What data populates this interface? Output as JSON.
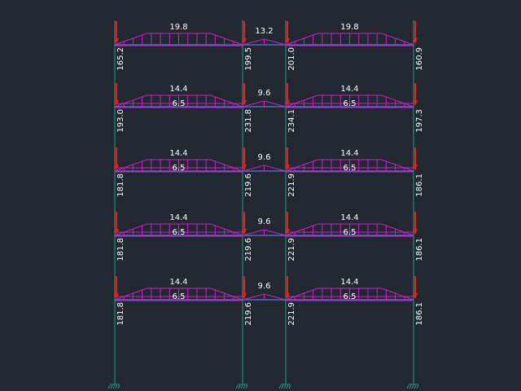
{
  "colors": {
    "background": "#212830",
    "column": "#1f9e8a",
    "beam": "#4a70b8",
    "load": "#d21bd2",
    "point_load": "#ff1414",
    "text": "#ffffff"
  },
  "floors": [
    {
      "left_bay": {
        "peak": "19.8",
        "base": ""
      },
      "mid_bay": {
        "peak": "13.2"
      },
      "right_bay": {
        "peak": "19.8",
        "base": ""
      },
      "point_loads": [
        "165.2",
        "199.5",
        "201.0",
        "160.9"
      ]
    },
    {
      "left_bay": {
        "peak": "14.4",
        "base": "6.5"
      },
      "mid_bay": {
        "peak": "9.6"
      },
      "right_bay": {
        "peak": "14.4",
        "base": "6.5"
      },
      "point_loads": [
        "193.0",
        "231.8",
        "234.1",
        "197.3"
      ]
    },
    {
      "left_bay": {
        "peak": "14.4",
        "base": "6.5"
      },
      "mid_bay": {
        "peak": "9.6"
      },
      "right_bay": {
        "peak": "14.4",
        "base": "6.5"
      },
      "point_loads": [
        "181.8",
        "219.6",
        "221.9",
        "186.1"
      ]
    },
    {
      "left_bay": {
        "peak": "14.4",
        "base": "6.5"
      },
      "mid_bay": {
        "peak": "9.6"
      },
      "right_bay": {
        "peak": "14.4",
        "base": "6.5"
      },
      "point_loads": [
        "181.8",
        "219.6",
        "221.9",
        "186.1"
      ]
    },
    {
      "left_bay": {
        "peak": "14.4",
        "base": "6.5"
      },
      "mid_bay": {
        "peak": "9.6"
      },
      "right_bay": {
        "peak": "14.4",
        "base": "6.5"
      },
      "point_loads": [
        "181.8",
        "219.6",
        "221.9",
        "186.1"
      ]
    }
  ],
  "supports": [
    "fixed-support-icon",
    "fixed-support-icon",
    "fixed-support-icon",
    "fixed-support-icon"
  ]
}
